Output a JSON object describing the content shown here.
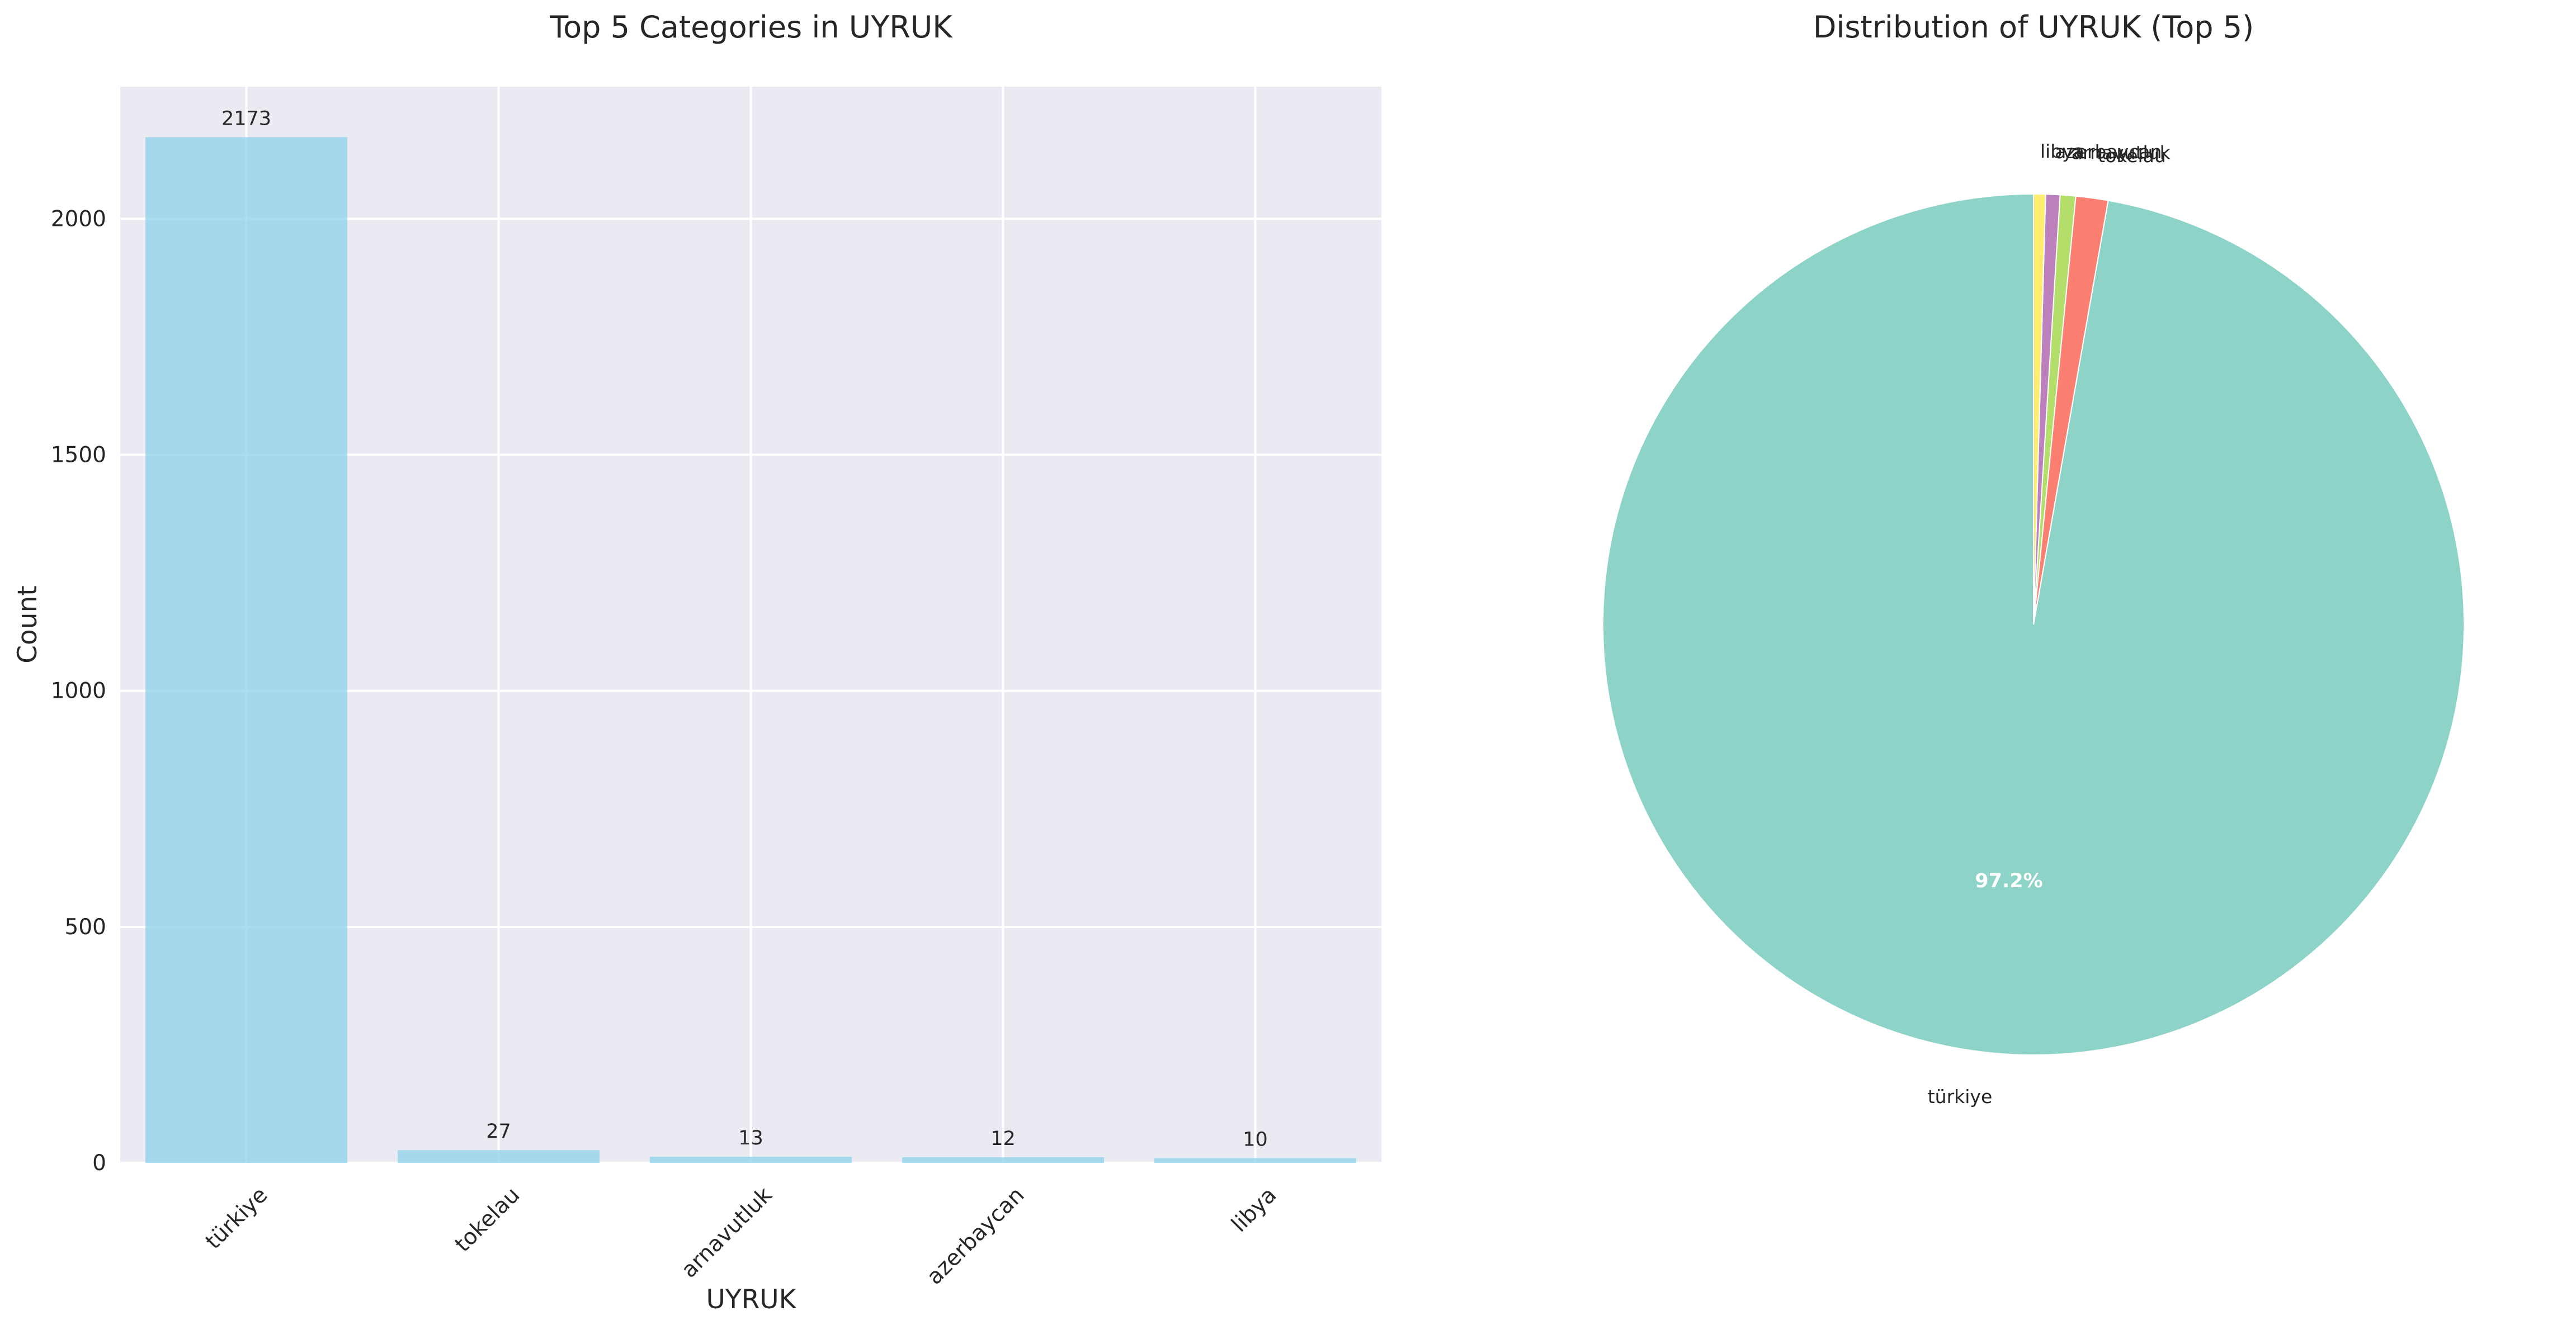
{
  "chart_data": [
    {
      "type": "bar",
      "title": "Top 5 Categories in UYRUK",
      "xlabel": "UYRUK",
      "ylabel": "Count",
      "categories": [
        "türkiye",
        "tokelau",
        "arnavutluk",
        "azerbaycan",
        "libya"
      ],
      "values": [
        2173,
        27,
        13,
        12,
        10
      ],
      "ylim": [
        0,
        2280
      ],
      "yticks": [
        "0",
        "500",
        "1000",
        "1500",
        "2000"
      ],
      "grid": true,
      "colors": {
        "bar": "#87ceeb",
        "axes_bg": "#eaeaf2",
        "grid": "#ffffff"
      }
    },
    {
      "type": "pie",
      "title": "Distribution of UYRUK (Top 5)",
      "labels": [
        "türkiye",
        "tokelau",
        "arnavutluk",
        "azerbaycan",
        "libya"
      ],
      "values": [
        2173,
        27,
        13,
        12,
        10
      ],
      "pct_shown": "97.2%",
      "colors": [
        "#8dd3c7",
        "#fb8072",
        "#b3de69",
        "#bc80bd",
        "#ffed6f"
      ]
    }
  ]
}
